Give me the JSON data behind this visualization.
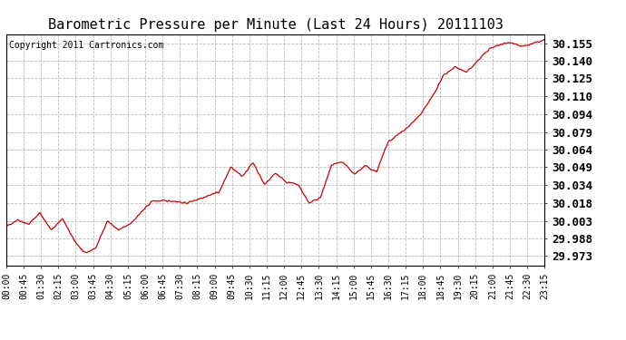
{
  "title": "Barometric Pressure per Minute (Last 24 Hours) 20111103",
  "copyright": "Copyright 2011 Cartronics.com",
  "line_color": "#cc0000",
  "bg_color": "#ffffff",
  "plot_bg_color": "#ffffff",
  "grid_color": "#bbbbbb",
  "yticks": [
    29.973,
    29.988,
    30.003,
    30.018,
    30.034,
    30.049,
    30.064,
    30.079,
    30.094,
    30.11,
    30.125,
    30.14,
    30.155
  ],
  "ylim": [
    29.965,
    30.163
  ],
  "xtick_labels": [
    "00:00",
    "00:45",
    "01:30",
    "02:15",
    "03:00",
    "03:45",
    "04:30",
    "05:15",
    "06:00",
    "06:45",
    "07:30",
    "08:15",
    "09:00",
    "09:45",
    "10:30",
    "11:15",
    "12:00",
    "12:45",
    "13:30",
    "14:15",
    "15:00",
    "15:45",
    "16:30",
    "17:15",
    "18:00",
    "18:45",
    "19:30",
    "20:15",
    "21:00",
    "21:45",
    "22:30",
    "23:15"
  ],
  "ylabel_fontsize": 9,
  "xlabel_fontsize": 7,
  "title_fontsize": 11,
  "copyright_fontsize": 7
}
